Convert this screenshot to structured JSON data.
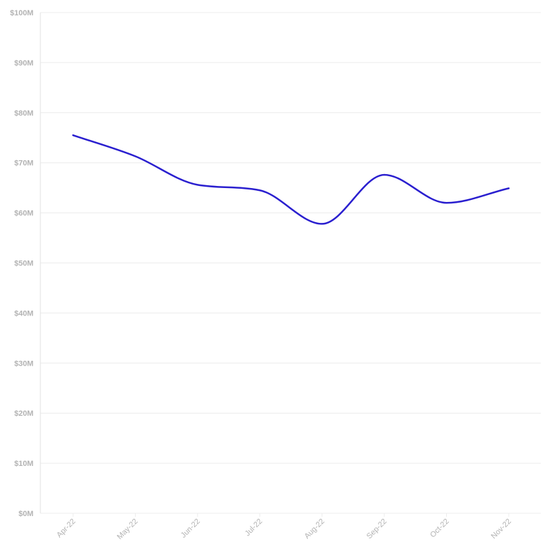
{
  "chart_data": {
    "type": "line",
    "title": "",
    "xlabel": "",
    "ylabel": "",
    "categories": [
      "Apr-22",
      "May-22",
      "Jun-22",
      "Jul-22",
      "Aug-22",
      "Sep-22",
      "Oct-22",
      "Nov-22"
    ],
    "series": [
      {
        "values": [
          75.5,
          71.3,
          65.6,
          64.5,
          57.8,
          67.6,
          62.0,
          64.9
        ],
        "color": "#2a1fcf"
      }
    ],
    "ylim": [
      0,
      100
    ],
    "yticks": [
      0,
      10,
      20,
      30,
      40,
      50,
      60,
      70,
      80,
      90,
      100
    ],
    "ytick_labels": [
      "$0M",
      "$10M",
      "$20M",
      "$30M",
      "$40M",
      "$50M",
      "$60M",
      "$70M",
      "$80M",
      "$90M",
      "$100M"
    ],
    "grid": true,
    "legend": "none",
    "smooth": true
  }
}
